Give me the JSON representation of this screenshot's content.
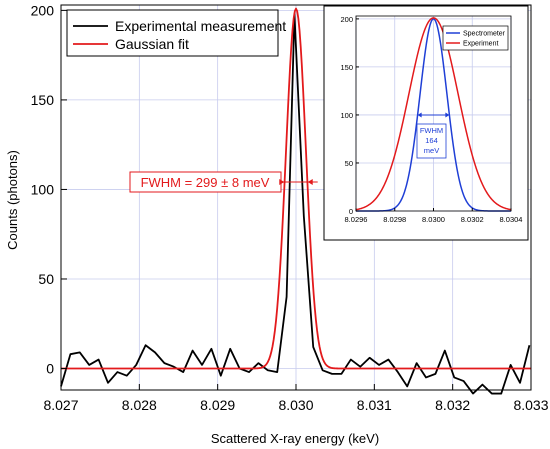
{
  "chart_data": [
    {
      "type": "line",
      "panel": "main",
      "xlabel": "Scattered X-ray energy (keV)",
      "ylabel": "Counts (photons)",
      "xlim": [
        8.027,
        8.033
      ],
      "ylim": [
        -12,
        203
      ],
      "x_ticks": [
        "8.027",
        "8.028",
        "8.029",
        "8.030",
        "8.031",
        "8.032",
        "8.033"
      ],
      "y_ticks": [
        "0",
        "50",
        "100",
        "150",
        "200"
      ],
      "grid": true,
      "legend_position": "top-left",
      "series": [
        {
          "name": "Experimental measurement",
          "color": "#000000",
          "x": [
            8.027,
            8.02712,
            8.02724,
            8.02736,
            8.02748,
            8.0276,
            8.02772,
            8.02784,
            8.02796,
            8.02808,
            8.0282,
            8.02832,
            8.02844,
            8.02856,
            8.02868,
            8.0288,
            8.02892,
            8.02904,
            8.02916,
            8.02928,
            8.0294,
            8.02952,
            8.02964,
            8.02976,
            8.02988,
            8.02998,
            8.0301,
            8.03022,
            8.03034,
            8.03046,
            8.03058,
            8.0307,
            8.03082,
            8.03094,
            8.03106,
            8.03118,
            8.0313,
            8.03142,
            8.03154,
            8.03166,
            8.03178,
            8.0319,
            8.03202,
            8.03214,
            8.03226,
            8.03238,
            8.0325,
            8.03262,
            8.03274,
            8.03286,
            8.03298
          ],
          "y": [
            -10,
            8,
            9,
            2,
            5,
            -8,
            -2,
            -4,
            2,
            13,
            9,
            3,
            1,
            -2,
            10,
            2,
            11,
            -4,
            11,
            0,
            -2,
            3,
            -1,
            -2,
            40,
            198,
            85,
            12,
            -1,
            -3,
            -3,
            5,
            1,
            6,
            2,
            5,
            -2,
            -10,
            3,
            -5,
            -3,
            10,
            -5,
            -7,
            -14,
            -9,
            -14,
            -14,
            2,
            -8,
            13
          ]
        },
        {
          "name": "Gaussian fit",
          "color": "#e31a1c",
          "center": 8.03,
          "amplitude": 201,
          "fwhm_kev": 0.000299
        }
      ],
      "annotations": [
        {
          "text": "FWHM = 299 ± 8 meV",
          "color": "#e31a1c"
        }
      ]
    },
    {
      "type": "line",
      "panel": "inset",
      "xlim": [
        8.0296,
        8.0304
      ],
      "ylim": [
        0,
        203
      ],
      "x_ticks": [
        "8.0296",
        "8.0298",
        "8.0300",
        "8.0302",
        "8.0304"
      ],
      "y_ticks": [
        "0",
        "50",
        "100",
        "150",
        "200"
      ],
      "grid": true,
      "legend_position": "top-right",
      "series": [
        {
          "name": "Spectrometer",
          "color": "#1f3fd6",
          "center": 8.03,
          "amplitude": 200,
          "fwhm_kev": 0.000164
        },
        {
          "name": "Experiment",
          "color": "#e31a1c",
          "center": 8.03,
          "amplitude": 201,
          "fwhm_kev": 0.000299
        }
      ],
      "annotations": [
        {
          "text": [
            "FWHM",
            "164",
            "meV"
          ],
          "color": "#1f3fd6"
        }
      ]
    }
  ]
}
